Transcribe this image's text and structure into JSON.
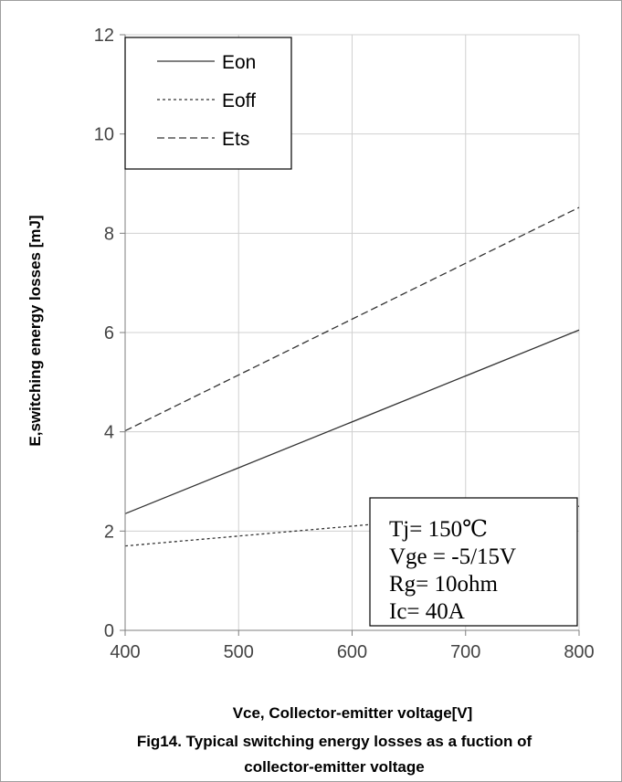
{
  "chart_data": {
    "type": "line",
    "xlabel": "Vce, Collector-emitter voltage[V]",
    "ylabel": "E,switching energy losses [mJ]",
    "xlim": [
      400,
      800
    ],
    "ylim": [
      0,
      12
    ],
    "x_ticks": [
      400,
      500,
      600,
      700,
      800
    ],
    "y_ticks": [
      0,
      2,
      4,
      6,
      8,
      10,
      12
    ],
    "grid": true,
    "legend_position": "top-left",
    "series": [
      {
        "name": "Eon",
        "style": "solid",
        "x": [
          400,
          800
        ],
        "values": [
          2.35,
          6.05
        ]
      },
      {
        "name": "Eoff",
        "style": "dotted",
        "x": [
          400,
          600,
          800
        ],
        "values": [
          1.7,
          2.1,
          2.5
        ]
      },
      {
        "name": "Ets",
        "style": "dashed",
        "x": [
          400,
          800
        ],
        "values": [
          4.02,
          8.52
        ]
      }
    ],
    "annotations": [
      "Tj= 150℃",
      "Vge = -5/15V",
      "Rg= 10ohm",
      "Ic= 40A"
    ],
    "caption": [
      "Fig14. Typical switching energy losses as a fuction of",
      "collector-emitter voltage"
    ]
  }
}
